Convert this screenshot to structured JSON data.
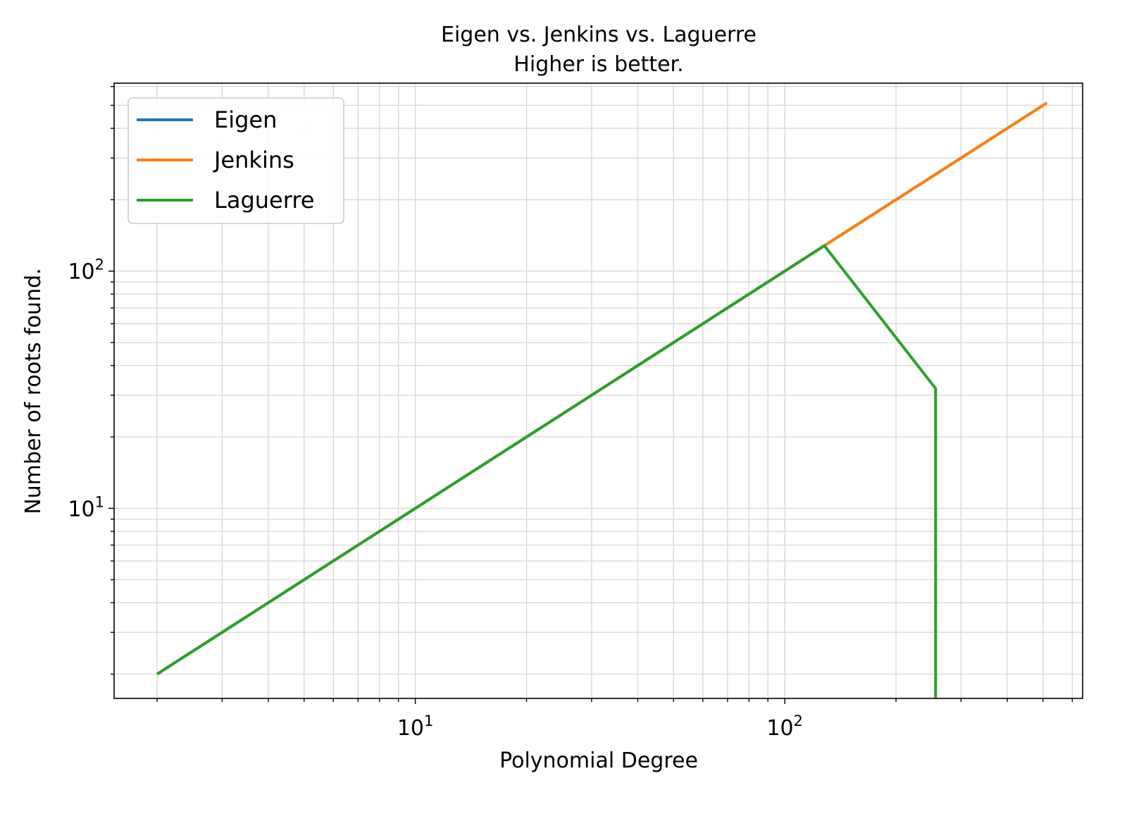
{
  "chart_data": {
    "type": "line",
    "title": "Eigen vs. Jenkins vs. Laguerre",
    "subtitle": "Higher is better.",
    "xlabel": "Polynomial Degree",
    "ylabel": "Number of roots found.",
    "xscale": "log",
    "yscale": "log",
    "xlim": [
      1.53,
      640
    ],
    "ylim": [
      1.58,
      620
    ],
    "grid": "major and minor",
    "legend_position": "top-left",
    "x_ticks": [
      {
        "base": "10",
        "exp": "1",
        "value": 10
      },
      {
        "base": "10",
        "exp": "2",
        "value": 100
      }
    ],
    "y_ticks": [
      {
        "base": "10",
        "exp": "1",
        "value": 10
      },
      {
        "base": "10",
        "exp": "2",
        "value": 100
      }
    ],
    "series": [
      {
        "name": "Eigen",
        "color": "#1f77b4",
        "x": [
          2,
          4,
          8,
          16,
          32,
          64,
          128,
          256,
          512
        ],
        "y": [
          2,
          4,
          8,
          16,
          32,
          64,
          128,
          256,
          512
        ]
      },
      {
        "name": "Jenkins",
        "color": "#ff7f0e",
        "x": [
          2,
          4,
          8,
          16,
          32,
          64,
          128,
          256,
          512
        ],
        "y": [
          2,
          4,
          8,
          16,
          32,
          64,
          128,
          256,
          512
        ]
      },
      {
        "name": "Laguerre",
        "color": "#2ca02c",
        "x": [
          2,
          4,
          8,
          16,
          32,
          64,
          128,
          256,
          256
        ],
        "y": [
          2,
          4,
          8,
          16,
          32,
          64,
          128,
          32,
          1.58
        ]
      }
    ]
  }
}
